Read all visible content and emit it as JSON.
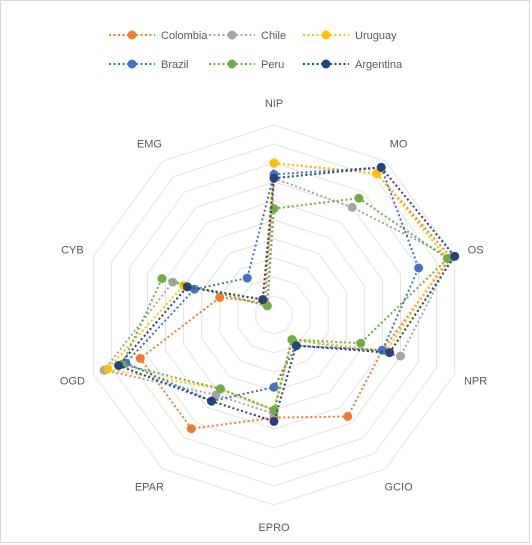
{
  "chart_data": {
    "type": "radar",
    "axes": [
      "NIP",
      "MO",
      "OS",
      "NPR",
      "GCIO",
      "EPRO",
      "EPAR",
      "OGD",
      "CYB",
      "EMG"
    ],
    "rlim": [
      0,
      5
    ],
    "grid": true,
    "legend_position": "top",
    "series": [
      {
        "name": "Colombia",
        "color": "#ED7D31",
        "values": [
          4.0,
          4.6,
          4.9,
          3.0,
          3.3,
          2.7,
          3.7,
          3.7,
          1.5,
          0.4
        ]
      },
      {
        "name": "Chile",
        "color": "#A5A5A5",
        "values": [
          3.6,
          3.5,
          4.9,
          3.5,
          0.8,
          2.6,
          2.6,
          4.7,
          2.8,
          0.3
        ]
      },
      {
        "name": "Uruguay",
        "color": "#FFC000",
        "values": [
          4.0,
          4.6,
          4.8,
          3.1,
          0.8,
          2.5,
          2.4,
          4.6,
          2.5,
          0.5
        ]
      },
      {
        "name": "Brazil",
        "color": "#4472C4",
        "values": [
          3.7,
          4.8,
          4.0,
          3.0,
          1.0,
          1.9,
          2.8,
          4.1,
          2.2,
          1.2
        ]
      },
      {
        "name": "Peru",
        "color": "#70AD47",
        "values": [
          2.8,
          3.8,
          4.8,
          2.4,
          0.8,
          2.5,
          2.4,
          4.2,
          3.1,
          0.3
        ]
      },
      {
        "name": "Argentina",
        "color": "#264478",
        "values": [
          3.6,
          4.8,
          5.0,
          3.2,
          1.0,
          2.8,
          2.8,
          4.3,
          2.4,
          0.5
        ]
      }
    ]
  }
}
